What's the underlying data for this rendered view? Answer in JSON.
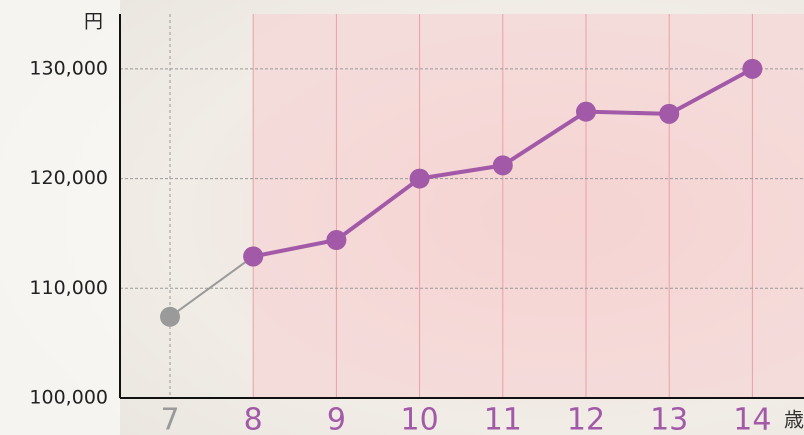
{
  "chart_data": {
    "type": "line",
    "y_label": "円",
    "x_label": "歳",
    "categories": [
      "7",
      "8",
      "9",
      "10",
      "11",
      "12",
      "13",
      "14"
    ],
    "series": [
      {
        "color": "#9a9a9a",
        "values": [
          107400,
          112900,
          null,
          null,
          null,
          null,
          null,
          null
        ]
      },
      {
        "color": "#a25aa8",
        "values": [
          null,
          112900,
          114400,
          120000,
          121200,
          126100,
          125900,
          130000
        ]
      }
    ],
    "ylim": [
      100000,
      135000
    ],
    "yticks": [
      {
        "value": 100000,
        "label": "100,000"
      },
      {
        "value": 110000,
        "label": "110,000"
      },
      {
        "value": 120000,
        "label": "120,000"
      },
      {
        "value": 130000,
        "label": "130,000"
      }
    ],
    "grid": true
  }
}
